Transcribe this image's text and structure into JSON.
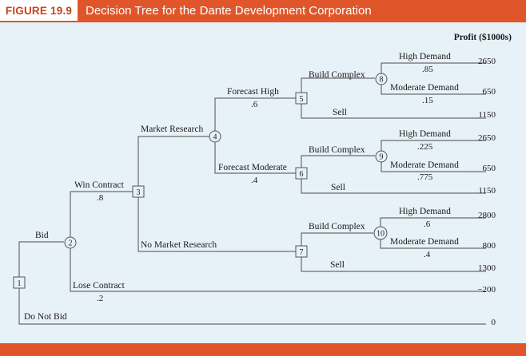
{
  "header": {
    "figure_label": "FIGURE 19.9",
    "title": "Decision Tree for the Dante Development Corporation"
  },
  "column_header": "Profit ($1000s)",
  "nodes": {
    "n1": "1",
    "n2": "2",
    "n3": "3",
    "n4": "4",
    "n5": "5",
    "n6": "6",
    "n7": "7",
    "n8": "8",
    "n9": "9",
    "n10": "10"
  },
  "branches": {
    "bid": "Bid",
    "do_not_bid": "Do Not Bid",
    "win_contract": "Win Contract",
    "win_prob": ".8",
    "lose_contract": "Lose Contract",
    "lose_prob": ".2",
    "market_research": "Market Research",
    "no_market_research": "No Market Research",
    "forecast_high": "Forecast High",
    "forecast_high_prob": ".6",
    "forecast_moderate": "Forecast Moderate",
    "forecast_moderate_prob": ".4",
    "n5_build": "Build Complex",
    "n5_sell": "Sell",
    "n6_build": "Build Complex",
    "n6_sell": "Sell",
    "n7_build": "Build Complex",
    "n7_sell": "Sell",
    "n8_high": "High Demand",
    "n8_high_prob": ".85",
    "n8_mod": "Moderate Demand",
    "n8_mod_prob": ".15",
    "n9_high": "High Demand",
    "n9_high_prob": ".225",
    "n9_mod": "Moderate Demand",
    "n9_mod_prob": ".775",
    "n10_high": "High Demand",
    "n10_high_prob": ".6",
    "n10_mod": "Moderate Demand",
    "n10_mod_prob": ".4"
  },
  "payoffs": [
    "2650",
    "650",
    "1150",
    "2650",
    "650",
    "1150",
    "2800",
    "800",
    "1300",
    "−200",
    "0"
  ]
}
